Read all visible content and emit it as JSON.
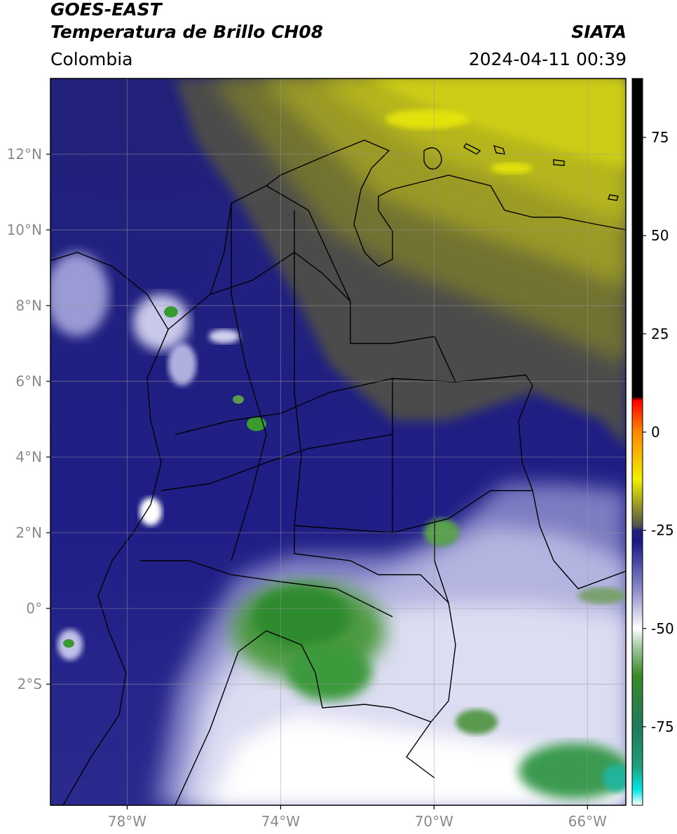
{
  "header": {
    "satellite": "GOES-EAST",
    "product": "Temperatura de Brillo CH08",
    "brand": "SIATA",
    "region": "Colombia",
    "timestamp": "2024-04-11 00:39"
  },
  "map": {
    "lon_range": [
      -80,
      -65
    ],
    "lat_range": [
      -5.2,
      14
    ],
    "lat_ticks": [
      {
        "value": 12,
        "label": "12°N"
      },
      {
        "value": 10,
        "label": "10°N"
      },
      {
        "value": 8,
        "label": "8°N"
      },
      {
        "value": 6,
        "label": "6°N"
      },
      {
        "value": 4,
        "label": "4°N"
      },
      {
        "value": 2,
        "label": "2°N"
      },
      {
        "value": 0,
        "label": "0°"
      },
      {
        "value": -2,
        "label": "2°S"
      }
    ],
    "lon_ticks": [
      {
        "value": -78,
        "label": "78°W"
      },
      {
        "value": -74,
        "label": "74°W"
      },
      {
        "value": -70,
        "label": "70°W"
      },
      {
        "value": -66,
        "label": "66°W"
      }
    ],
    "gridlines": true
  },
  "colorbar": {
    "range": [
      -95,
      90
    ],
    "ticks": [
      {
        "value": 75,
        "label": "75"
      },
      {
        "value": 50,
        "label": "50"
      },
      {
        "value": 25,
        "label": "25"
      },
      {
        "value": 0,
        "label": "0"
      },
      {
        "value": -25,
        "label": "-25"
      },
      {
        "value": -50,
        "label": "-50"
      },
      {
        "value": -75,
        "label": "-75"
      }
    ],
    "stops": [
      {
        "value": -95,
        "color": "#ffffff"
      },
      {
        "value": -91,
        "color": "#00e5e5"
      },
      {
        "value": -85,
        "color": "#1f9f7a"
      },
      {
        "value": -75,
        "color": "#1f7a5a"
      },
      {
        "value": -62,
        "color": "#3a8a2a"
      },
      {
        "value": -55,
        "color": "#9cc79a"
      },
      {
        "value": -50,
        "color": "#ffffff"
      },
      {
        "value": -40,
        "color": "#8a8ac8"
      },
      {
        "value": -28,
        "color": "#1a1a8a"
      },
      {
        "value": -25,
        "color": "#20207a"
      },
      {
        "value": -24,
        "color": "#505050"
      },
      {
        "value": -18,
        "color": "#a0a020"
      },
      {
        "value": -12,
        "color": "#f0f000"
      },
      {
        "value": 0,
        "color": "#ff8800"
      },
      {
        "value": 8,
        "color": "#ff0000"
      },
      {
        "value": 9,
        "color": "#000000"
      },
      {
        "value": 90,
        "color": "#000000"
      }
    ]
  }
}
